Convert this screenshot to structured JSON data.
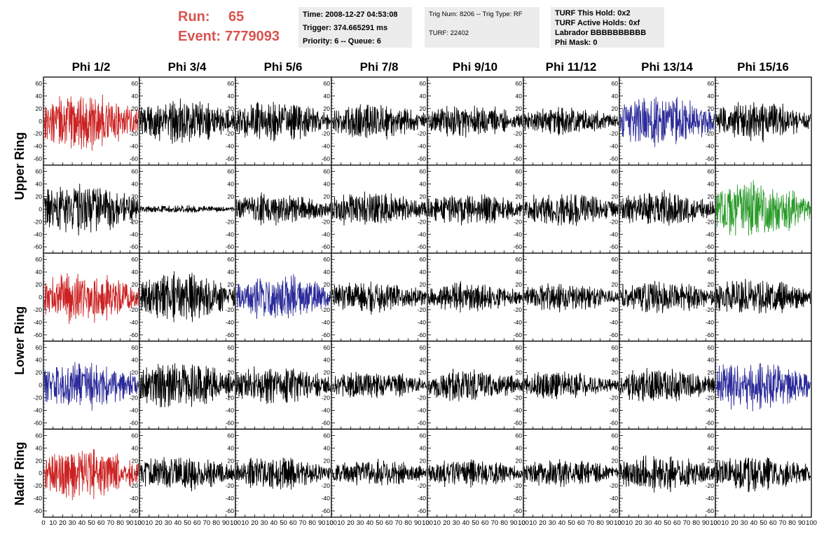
{
  "header": {
    "run_label": "Run:",
    "run_value": "65",
    "event_label": "Event:",
    "event_value": "7779093",
    "time_box": {
      "time": "Time: 2008-12-27 04:53:08",
      "trigger": "Trigger: 374.665291 ms",
      "priority": "Priority: 6 -- Queue: 6"
    },
    "trig_box": {
      "trig": "Trig Num: 8206 -- Trig Type: RF",
      "turf": "TURF: 22402"
    },
    "turf_box": {
      "this_hold": "TURF This Hold: 0x2",
      "active_holds": "TURF Active Holds: 0xf",
      "labrador": "Labrador BBBBBBBBBB",
      "phi_mask": "Phi Mask: 0"
    }
  },
  "columns": [
    "Phi 1/2",
    "Phi 3/4",
    "Phi 5/6",
    "Phi 7/8",
    "Phi 9/10",
    "Phi 11/12",
    "Phi 13/14",
    "Phi 15/16"
  ],
  "ring_labels": [
    "Upper Ring",
    "Lower Ring",
    "Nadir Ring"
  ],
  "colors": {
    "red": "#cc2222",
    "blue": "#2a2a9a",
    "green": "#2a9a2a",
    "black": "#000000",
    "header_red": "#d9534f"
  },
  "chart_data": {
    "type": "line",
    "rows": 5,
    "cols": 8,
    "xlim": [
      0,
      100
    ],
    "ylim": [
      -70,
      70
    ],
    "x_ticks": [
      0,
      10,
      20,
      30,
      40,
      50,
      60,
      70,
      80,
      90,
      100
    ],
    "x_tick_labels": [
      "0",
      "10",
      "20",
      "30",
      "40",
      "50",
      "60",
      "70",
      "80",
      "90",
      "100"
    ],
    "y_ticks": [
      -60,
      -40,
      -20,
      0,
      20,
      40,
      60
    ],
    "y_tick_labels": [
      "-60",
      "-40",
      "-20",
      "0",
      "20",
      "40",
      "60"
    ],
    "panels": [
      [
        {
          "color": "red",
          "amp": 28
        },
        {
          "color": "black",
          "amp": 22
        },
        {
          "color": "black",
          "amp": 20
        },
        {
          "color": "black",
          "amp": 18
        },
        {
          "color": "black",
          "amp": 16
        },
        {
          "color": "black",
          "amp": 14
        },
        {
          "color": "blue",
          "amp": 26
        },
        {
          "color": "black",
          "amp": 20
        }
      ],
      [
        {
          "color": "black",
          "amp": 26
        },
        {
          "color": "black",
          "amp": 4
        },
        {
          "color": "black",
          "amp": 16
        },
        {
          "color": "black",
          "amp": 18
        },
        {
          "color": "black",
          "amp": 16
        },
        {
          "color": "black",
          "amp": 18
        },
        {
          "color": "black",
          "amp": 18
        },
        {
          "color": "green",
          "amp": 30
        }
      ],
      [
        {
          "color": "red",
          "amp": 26
        },
        {
          "color": "black",
          "amp": 24
        },
        {
          "color": "blue",
          "amp": 24
        },
        {
          "color": "black",
          "amp": 16
        },
        {
          "color": "black",
          "amp": 14
        },
        {
          "color": "black",
          "amp": 14
        },
        {
          "color": "black",
          "amp": 18
        },
        {
          "color": "black",
          "amp": 18
        }
      ],
      [
        {
          "color": "blue",
          "amp": 24
        },
        {
          "color": "black",
          "amp": 24
        },
        {
          "color": "black",
          "amp": 20
        },
        {
          "color": "black",
          "amp": 14
        },
        {
          "color": "black",
          "amp": 16
        },
        {
          "color": "black",
          "amp": 14
        },
        {
          "color": "black",
          "amp": 18
        },
        {
          "color": "blue",
          "amp": 26
        }
      ],
      [
        {
          "color": "red",
          "amp": 26
        },
        {
          "color": "black",
          "amp": 18
        },
        {
          "color": "black",
          "amp": 16
        },
        {
          "color": "black",
          "amp": 14
        },
        {
          "color": "black",
          "amp": 14
        },
        {
          "color": "black",
          "amp": 14
        },
        {
          "color": "black",
          "amp": 18
        },
        {
          "color": "black",
          "amp": 18
        }
      ]
    ]
  }
}
